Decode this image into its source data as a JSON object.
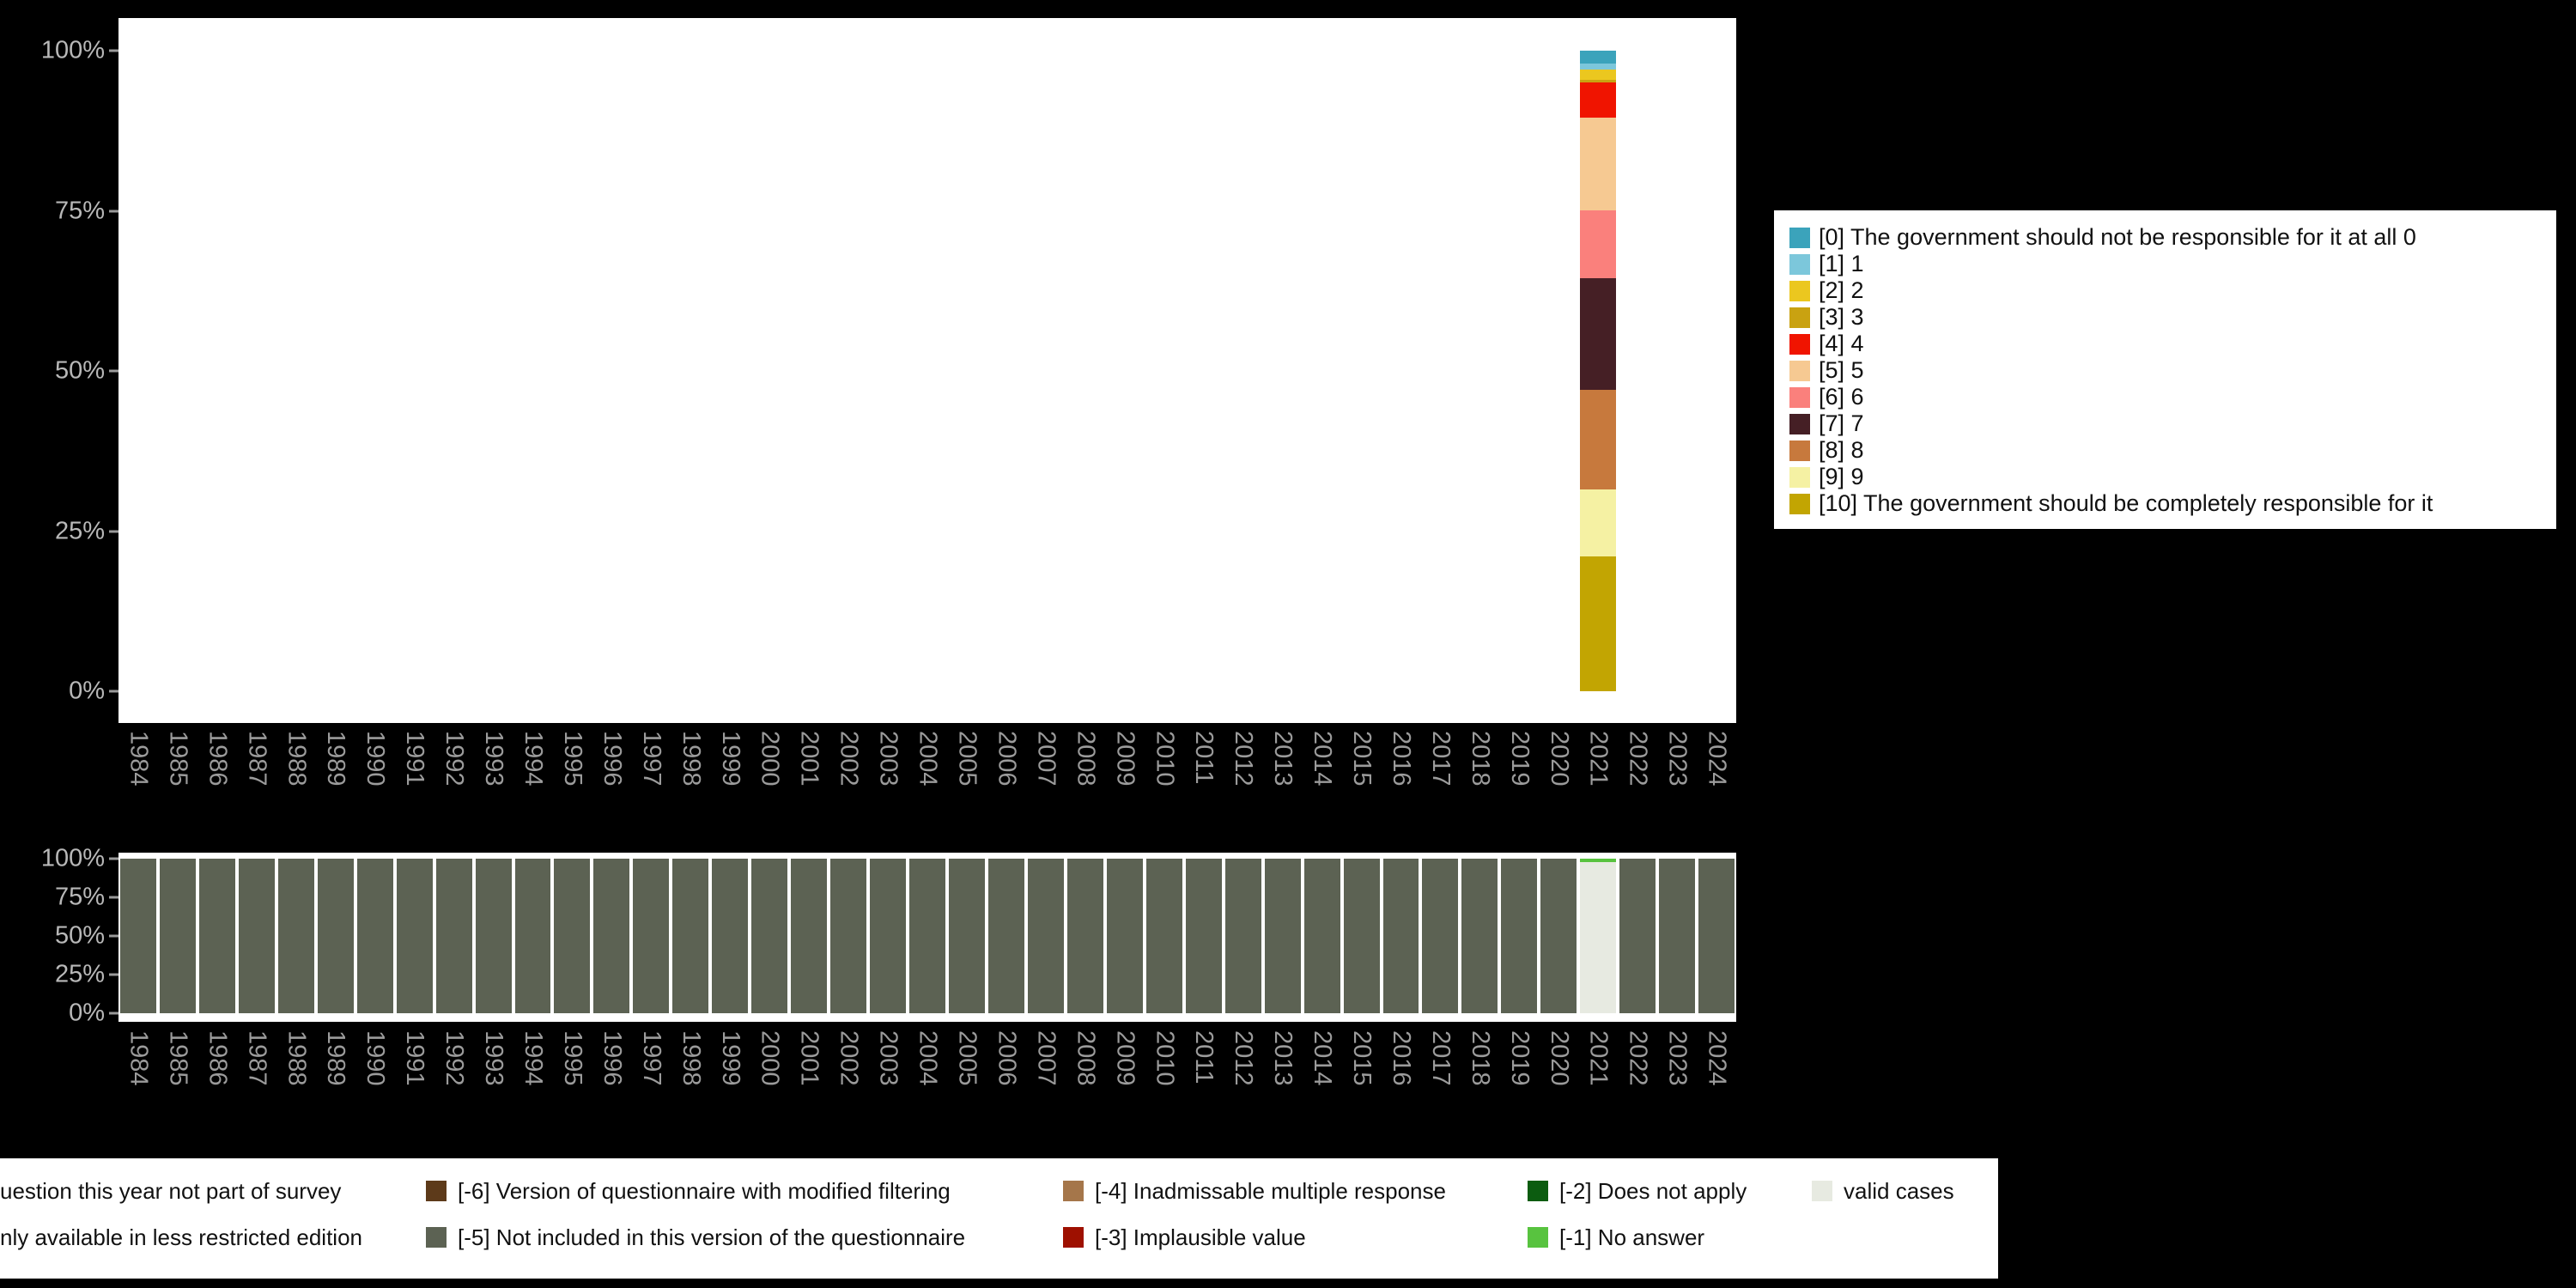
{
  "page": {
    "background": "#000000",
    "plot_background": "#ffffff"
  },
  "chart_data": [
    {
      "id": "answer-distribution",
      "type": "bar",
      "stacked": true,
      "title": "",
      "xlabel": "",
      "ylabel": "",
      "ylim": [
        0,
        100
      ],
      "yticks": [
        "0%",
        "25%",
        "50%",
        "75%",
        "100%"
      ],
      "grid": false,
      "legend_position": "right",
      "note": "Only the year 2021 shows a stacked bar; all other years are empty. Values are percentages.",
      "categories": [
        "1984",
        "1985",
        "1986",
        "1987",
        "1988",
        "1989",
        "1990",
        "1991",
        "1992",
        "1993",
        "1994",
        "1995",
        "1996",
        "1997",
        "1998",
        "1999",
        "2000",
        "2001",
        "2002",
        "2003",
        "2004",
        "2005",
        "2006",
        "2007",
        "2008",
        "2009",
        "2010",
        "2011",
        "2012",
        "2013",
        "2014",
        "2015",
        "2016",
        "2017",
        "2018",
        "2019",
        "2020",
        "2021",
        "2022",
        "2023",
        "2024"
      ],
      "series": [
        {
          "name": "[0] The government should not be responsible for it at all 0",
          "color": "#3ba3bb",
          "default": 0,
          "values": {
            "2021": 2
          }
        },
        {
          "name": "[1] 1",
          "color": "#7cc7db",
          "default": 0,
          "values": {
            "2021": 1
          }
        },
        {
          "name": "[2] 2",
          "color": "#ebc71f",
          "default": 0,
          "values": {
            "2021": 1.5
          }
        },
        {
          "name": "[3] 3",
          "color": "#c9a211",
          "default": 0,
          "values": {
            "2021": 0.5
          }
        },
        {
          "name": "[4] 4",
          "color": "#f01400",
          "default": 0,
          "values": {
            "2021": 5.5
          }
        },
        {
          "name": "[5] 5",
          "color": "#f6c992",
          "default": 0,
          "values": {
            "2021": 14.5
          }
        },
        {
          "name": "[6] 6",
          "color": "#fa807c",
          "default": 0,
          "values": {
            "2021": 10.5
          }
        },
        {
          "name": "[7] 7",
          "color": "#451f25",
          "default": 0,
          "values": {
            "2021": 17.5
          }
        },
        {
          "name": "[8] 8",
          "color": "#c7793d",
          "default": 0,
          "values": {
            "2021": 15.5
          }
        },
        {
          "name": "[9] 9",
          "color": "#f5f1a3",
          "default": 0,
          "values": {
            "2021": 10.5
          }
        },
        {
          "name": "[10] The government should be completely responsible for it",
          "color": "#c2a502",
          "default": 0,
          "values": {
            "2021": 21
          }
        }
      ]
    },
    {
      "id": "case-availability",
      "type": "bar",
      "stacked": true,
      "title": "",
      "xlabel": "",
      "ylabel": "",
      "ylim": [
        0,
        100
      ],
      "yticks": [
        "0%",
        "25%",
        "50%",
        "75%",
        "100%"
      ],
      "grid": false,
      "note": "Every year is 100% '[-5] Not included in this version of the questionnaire' except 2021, which is 98% valid cases and 2% '[-1] No answer'.",
      "categories": [
        "1984",
        "1985",
        "1986",
        "1987",
        "1988",
        "1989",
        "1990",
        "1991",
        "1992",
        "1993",
        "1994",
        "1995",
        "1996",
        "1997",
        "1998",
        "1999",
        "2000",
        "2001",
        "2002",
        "2003",
        "2004",
        "2005",
        "2006",
        "2007",
        "2008",
        "2009",
        "2010",
        "2011",
        "2012",
        "2013",
        "2014",
        "2015",
        "2016",
        "2017",
        "2018",
        "2019",
        "2020",
        "2021",
        "2022",
        "2023",
        "2024"
      ],
      "series": [
        {
          "name": "[-1] No answer",
          "color": "#58c33f",
          "default": 0,
          "values": {
            "2021": 2
          }
        },
        {
          "name": "valid cases",
          "color": "#e7eae1",
          "default": 0,
          "values": {
            "2021": 98
          }
        },
        {
          "name": "[-5] Not included in this version of the questionnaire",
          "color": "#5c6253",
          "default": 100,
          "values": {
            "2021": 0
          }
        }
      ]
    }
  ],
  "missing_legend": {
    "rows": [
      [
        {
          "label": "uestion this year not part of survey",
          "color": null,
          "truncated": true
        },
        {
          "label": "[-6] Version of questionnaire with modified filtering",
          "color": "#5d3a1a"
        },
        {
          "label": "[-4] Inadmissable multiple response",
          "color": "#a5764a"
        },
        {
          "label": "[-2] Does not apply",
          "color": "#0c5c10"
        },
        {
          "label": "valid cases",
          "color": "#e7eae1"
        }
      ],
      [
        {
          "label": "nly available in less restricted edition",
          "color": null,
          "truncated": true
        },
        {
          "label": "[-5] Not included in this version of the questionnaire",
          "color": "#5c6253"
        },
        {
          "label": "[-3] Implausible value",
          "color": "#9e1000"
        },
        {
          "label": "[-1] No answer",
          "color": "#58c33f"
        }
      ]
    ]
  }
}
